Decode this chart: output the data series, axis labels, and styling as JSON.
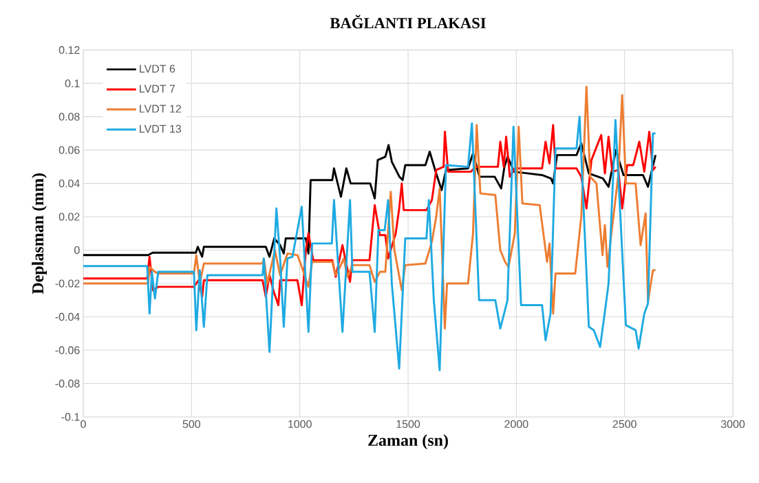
{
  "chart_data": {
    "type": "line",
    "title": "BAĞLANTI PLAKASI",
    "xlabel": "Zaman (sn)",
    "ylabel": "Deplasman (mm)",
    "xlim": [
      0,
      3000
    ],
    "xticks": [
      0,
      500,
      1000,
      1500,
      2000,
      2500,
      3000
    ],
    "ylim": [
      -0.1,
      0.12
    ],
    "yticks": [
      -0.1,
      -0.08,
      -0.06,
      -0.04,
      -0.02,
      0,
      0.02,
      0.04,
      0.06,
      0.08,
      0.1,
      0.12
    ],
    "grid": true,
    "legend": "top left",
    "marker": "none",
    "line_style": "solid",
    "series": [
      {
        "name": "LVDT 6",
        "color": "#000000",
        "x": [
          0,
          300,
          320,
          520,
          529,
          549,
          557,
          843,
          860,
          882,
          909,
          926,
          935,
          1028,
          1040,
          1050,
          1150,
          1158,
          1190,
          1215,
          1235,
          1325,
          1346,
          1360,
          1395,
          1410,
          1425,
          1460,
          1475,
          1487,
          1580,
          1600,
          1625,
          1655,
          1675,
          1777,
          1800,
          1830,
          1900,
          1930,
          1945,
          1960,
          1990,
          2119,
          2160,
          2170,
          2188,
          2278,
          2300,
          2335,
          2400,
          2426,
          2460,
          2495,
          2585,
          2608,
          2643
        ],
        "values": [
          -0.003,
          -0.003,
          -0.0015,
          -0.0015,
          0.002,
          -0.004,
          0.002,
          0.002,
          -0.004,
          0.007,
          0.003,
          -0.002,
          0.007,
          0.007,
          -0.002,
          0.042,
          0.042,
          0.049,
          0.032,
          0.049,
          0.04,
          0.04,
          0.031,
          0.054,
          0.056,
          0.063,
          0.053,
          0.044,
          0.042,
          0.051,
          0.051,
          0.059,
          0.048,
          0.036,
          0.048,
          0.049,
          0.058,
          0.044,
          0.044,
          0.037,
          0.05,
          0.056,
          0.047,
          0.045,
          0.043,
          0.04,
          0.057,
          0.057,
          0.064,
          0.046,
          0.043,
          0.038,
          0.06,
          0.045,
          0.045,
          0.038,
          0.057
        ]
      },
      {
        "name": "LVDT 7",
        "color": "#ff0000",
        "x": [
          0,
          295,
          306,
          322,
          346,
          511,
          533,
          549,
          557,
          828,
          843,
          860,
          880,
          901,
          909,
          989,
          1009,
          1028,
          1040,
          1062,
          1150,
          1166,
          1197,
          1232,
          1243,
          1322,
          1346,
          1370,
          1395,
          1408,
          1443,
          1459,
          1471,
          1480,
          1585,
          1610,
          1630,
          1664,
          1670,
          1685,
          1790,
          1810,
          1915,
          1926,
          1942,
          1953,
          1970,
          1993,
          2119,
          2135,
          2153,
          2170,
          2181,
          2278,
          2300,
          2324,
          2347,
          2392,
          2409,
          2426,
          2443,
          2471,
          2489,
          2512,
          2540,
          2568,
          2591,
          2614,
          2631,
          2643
        ],
        "values": [
          -0.017,
          -0.017,
          -0.004,
          -0.024,
          -0.022,
          -0.022,
          -0.018,
          -0.028,
          -0.018,
          -0.018,
          -0.028,
          -0.015,
          -0.025,
          -0.033,
          -0.018,
          -0.018,
          -0.033,
          0.0,
          0.01,
          -0.006,
          -0.006,
          -0.016,
          0.003,
          -0.019,
          -0.006,
          -0.006,
          0.027,
          0.009,
          0.009,
          -0.005,
          0.01,
          0.025,
          0.04,
          0.024,
          0.024,
          0.03,
          0.048,
          0.05,
          0.071,
          0.047,
          0.047,
          0.05,
          0.05,
          0.065,
          0.05,
          0.068,
          0.044,
          0.049,
          0.049,
          0.065,
          0.052,
          0.075,
          0.049,
          0.049,
          0.044,
          0.025,
          0.054,
          0.069,
          0.046,
          0.068,
          0.047,
          0.048,
          0.025,
          0.051,
          0.051,
          0.065,
          0.047,
          0.071,
          0.048,
          0.05
        ]
      },
      {
        "name": "LVDT 12",
        "color": "#ed7d31",
        "x": [
          0,
          300,
          306,
          331,
          346,
          511,
          522,
          538,
          557,
          828,
          834,
          850,
          885,
          909,
          943,
          989,
          1009,
          1040,
          1057,
          1150,
          1166,
          1186,
          1203,
          1220,
          1243,
          1322,
          1346,
          1370,
          1395,
          1420,
          1437,
          1471,
          1487,
          1580,
          1610,
          1630,
          1646,
          1670,
          1680,
          1777,
          1800,
          1817,
          1834,
          1903,
          1926,
          1948,
          1964,
          1993,
          2011,
          2028,
          2108,
          2142,
          2153,
          2170,
          2181,
          2272,
          2300,
          2324,
          2341,
          2370,
          2398,
          2409,
          2421,
          2471,
          2489,
          2506,
          2551,
          2574,
          2597,
          2608,
          2631,
          2643
        ],
        "values": [
          -0.02,
          -0.02,
          -0.01,
          -0.013,
          -0.014,
          -0.014,
          -0.003,
          -0.02,
          -0.008,
          -0.008,
          -0.005,
          -0.02,
          0.0,
          -0.015,
          -0.002,
          -0.003,
          -0.01,
          -0.022,
          -0.007,
          -0.007,
          -0.015,
          -0.01,
          -0.005,
          -0.016,
          -0.009,
          -0.009,
          -0.019,
          -0.013,
          -0.013,
          0.035,
          0.0,
          -0.024,
          -0.009,
          -0.008,
          0.005,
          0.02,
          0.037,
          -0.047,
          -0.02,
          -0.02,
          0.01,
          0.075,
          0.034,
          0.033,
          0.0,
          -0.007,
          -0.01,
          0.01,
          0.074,
          0.028,
          0.027,
          -0.007,
          0.004,
          -0.038,
          -0.014,
          -0.014,
          0.02,
          0.098,
          0.044,
          0.04,
          -0.003,
          0.015,
          -0.01,
          0.045,
          0.093,
          0.04,
          0.04,
          0.003,
          0.022,
          -0.031,
          -0.012,
          -0.012
        ]
      },
      {
        "name": "LVDT 13",
        "color": "#1eaae2",
        "x": [
          0,
          295,
          306,
          317,
          331,
          346,
          511,
          522,
          538,
          557,
          573,
          828,
          834,
          860,
          892,
          909,
          926,
          943,
          966,
          1009,
          1040,
          1057,
          1148,
          1158,
          1197,
          1232,
          1243,
          1322,
          1346,
          1363,
          1392,
          1408,
          1425,
          1459,
          1487,
          1585,
          1596,
          1619,
          1646,
          1675,
          1777,
          1795,
          1828,
          1903,
          1926,
          1959,
          1987,
          2022,
          2119,
          2135,
          2158,
          2181,
          2278,
          2292,
          2335,
          2358,
          2387,
          2409,
          2426,
          2458,
          2506,
          2551,
          2565,
          2591,
          2608,
          2631,
          2643
        ],
        "values": [
          -0.0096,
          -0.0096,
          -0.038,
          -0.013,
          -0.029,
          -0.013,
          -0.013,
          -0.048,
          -0.012,
          -0.046,
          -0.015,
          -0.015,
          -0.005,
          -0.061,
          0.025,
          -0.005,
          -0.046,
          -0.005,
          -0.004,
          0.026,
          -0.049,
          0.004,
          0.004,
          0.03,
          -0.049,
          0.03,
          -0.013,
          -0.013,
          -0.049,
          0.012,
          0.012,
          0.03,
          -0.02,
          -0.071,
          0.007,
          0.007,
          0.03,
          -0.03,
          -0.072,
          0.051,
          0.05,
          0.076,
          -0.03,
          -0.03,
          -0.047,
          -0.03,
          0.074,
          -0.033,
          -0.033,
          -0.054,
          -0.038,
          0.061,
          0.061,
          0.08,
          -0.046,
          -0.048,
          -0.058,
          -0.037,
          -0.02,
          0.078,
          -0.045,
          -0.048,
          -0.059,
          -0.038,
          -0.032,
          0.07,
          0.07
        ]
      }
    ]
  }
}
